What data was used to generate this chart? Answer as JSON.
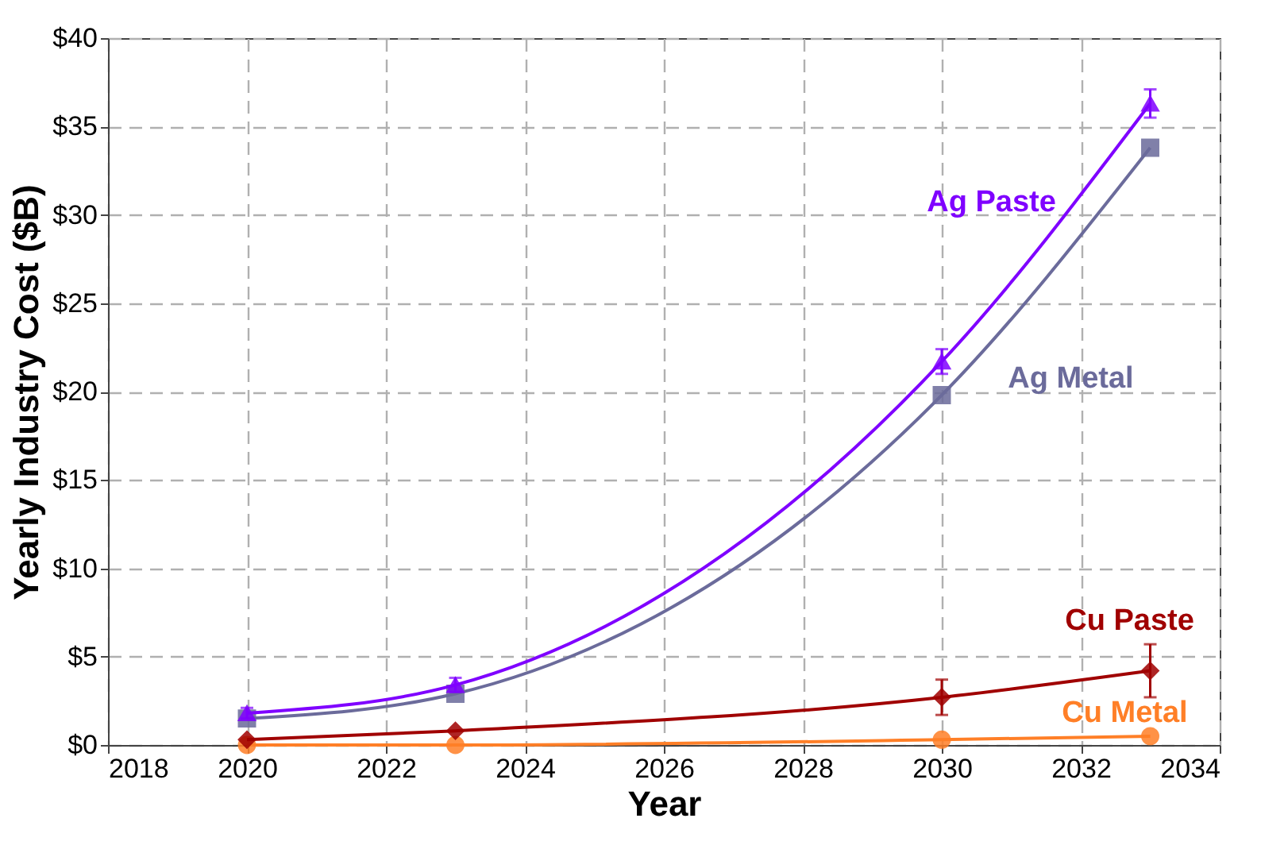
{
  "chart_data": {
    "type": "line",
    "xlabel": "Year",
    "ylabel": "Yearly Industry Cost ($B)",
    "x": [
      2020,
      2023,
      2030,
      2033
    ],
    "xlim": [
      2018,
      2034
    ],
    "xticks": [
      2018,
      2020,
      2022,
      2024,
      2026,
      2028,
      2030,
      2032,
      2034
    ],
    "ylim": [
      0,
      40
    ],
    "yticks": [
      {
        "value": 0,
        "label": "$0"
      },
      {
        "value": 5,
        "label": "$5"
      },
      {
        "value": 10,
        "label": "$10"
      },
      {
        "value": 15,
        "label": "$15"
      },
      {
        "value": 20,
        "label": "$20"
      },
      {
        "value": 25,
        "label": "$25"
      },
      {
        "value": 30,
        "label": "$30"
      },
      {
        "value": 35,
        "label": "$35"
      },
      {
        "value": 40,
        "label": "$40"
      }
    ],
    "grid": true,
    "line_style": "solid",
    "series": [
      {
        "name": "Ag Paste",
        "color": "#7f00ff",
        "marker": "triangle",
        "values": [
          1.8,
          3.4,
          21.7,
          36.3
        ],
        "errors": [
          0.3,
          0.4,
          0.7,
          0.8
        ]
      },
      {
        "name": "Ag Metal",
        "color": "#6b6b9b",
        "marker": "square",
        "values": [
          1.5,
          2.9,
          19.8,
          33.8
        ]
      },
      {
        "name": "Cu Paste",
        "color": "#a00000",
        "marker": "diamond",
        "values": [
          0.3,
          0.8,
          2.7,
          4.2
        ],
        "errors": [
          null,
          null,
          1.0,
          1.5
        ]
      },
      {
        "name": "Cu Metal",
        "color": "#ff7f27",
        "marker": "circle",
        "values": [
          0,
          0,
          0.3,
          0.5
        ]
      }
    ]
  }
}
